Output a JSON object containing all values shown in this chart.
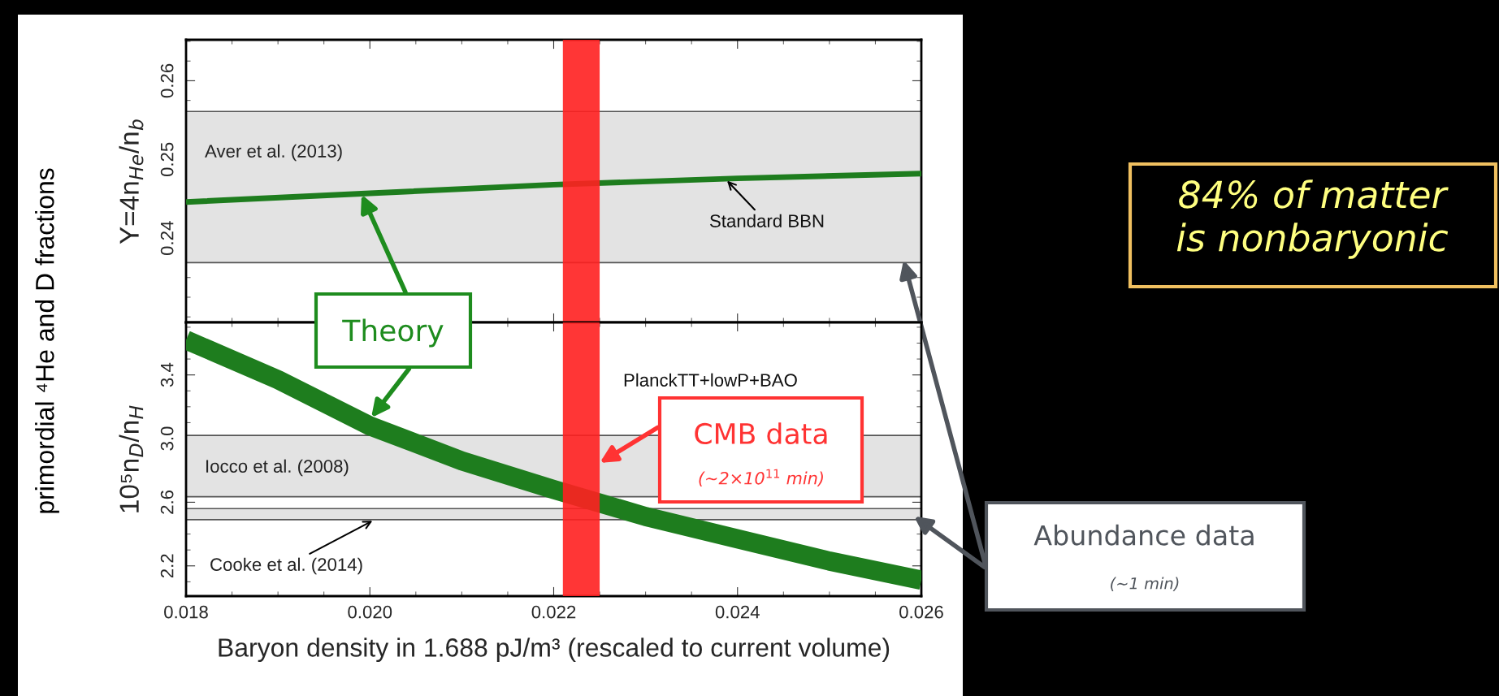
{
  "chart_data": [
    {
      "type": "line",
      "ylabel": "Y=4n$_{He}$/n$_{b}$",
      "x": [
        0.018,
        0.02,
        0.022,
        0.024,
        0.026
      ],
      "series": [
        {
          "color": "#1e7d1e",
          "values": [
            0.2446,
            0.2457,
            0.2468,
            0.2476,
            0.2482
          ]
        }
      ],
      "xlim": [
        0.018,
        0.026
      ],
      "xticks": [
        0.018,
        0.02,
        0.022,
        0.024,
        0.026
      ],
      "ylim": [
        0.2293,
        0.2652
      ],
      "yticks": [
        0.24,
        0.25,
        0.26
      ],
      "tick_labels": "y",
      "bands": [
        {
          "axis": "y",
          "from": 0.2369,
          "to": 0.2561,
          "label": "Aver et al. (2013)",
          "color": "#e3e3e3"
        },
        {
          "axis": "x",
          "from": 0.0221,
          "to": 0.0225,
          "color": "#ff2020"
        }
      ],
      "annotations": [
        "primordial ⁴He and D fractions",
        {
          "text": "Standard BBN",
          "x": 0.02387,
          "y": 0.2475
        }
      ]
    },
    {
      "type": "line",
      "ylabel": "10⁵n$_{D}$/n$_{H}$",
      "xlabel": "Baryon density in 1.688 pJ/m³ (rescaled to current volume)",
      "x": [
        0.018,
        0.019,
        0.02,
        0.021,
        0.022,
        0.023,
        0.024,
        0.025,
        0.026
      ],
      "series": [
        {
          "color": "#1e7d1e",
          "values": [
            3.62,
            3.37,
            3.08,
            2.86,
            2.68,
            2.51,
            2.37,
            2.23,
            2.11
          ]
        }
      ],
      "xlim": [
        0.018,
        0.026
      ],
      "xticks": [
        0.018,
        {
          "value": 0.02,
          "label": "0.020"
        },
        0.022,
        0.024,
        0.026
      ],
      "ylim": [
        2.01,
        3.73
      ],
      "yticks": [
        2.2,
        2.6,
        {
          "value": 3.0,
          "label": "3.0"
        },
        3.4
      ],
      "bands": [
        {
          "axis": "y",
          "from": 2.635,
          "to": 3.02,
          "label": "Iocco et al. (2008)",
          "color": "#e3e3e3"
        },
        {
          "axis": "y",
          "from": 2.49,
          "to": 2.56,
          "label": "Cooke et al. (2014)",
          "color": "#e3e3e3"
        },
        {
          "axis": "x",
          "from": 0.0221,
          "to": 0.0225,
          "color": "#ff2020"
        }
      ],
      "annotations": [
        "PlanckTT+lowP+BAO",
        "Theory",
        "CMB data",
        "(~2×10$^{11}$ min)",
        "Abundance data",
        "(~1 min)",
        "84% of matter\nis nonbaryonic"
      ]
    }
  ]
}
